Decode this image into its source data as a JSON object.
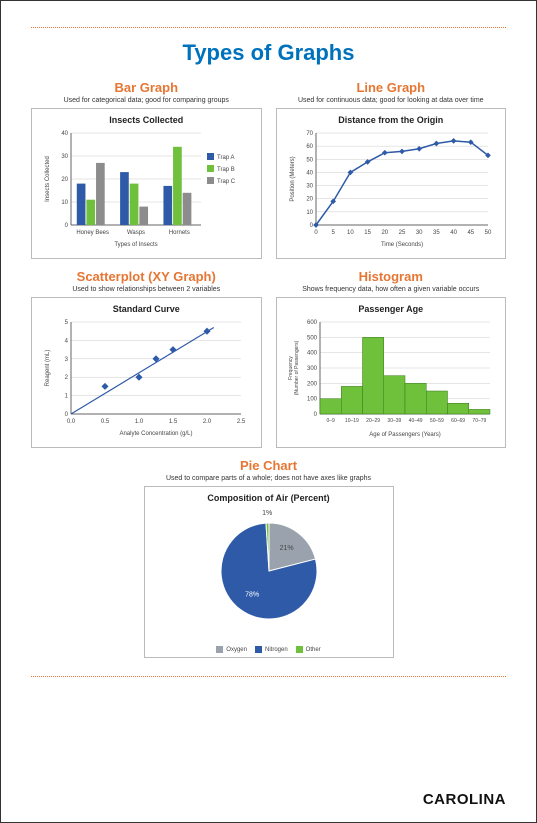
{
  "page_title": "Types of Graphs",
  "brand": "CAROLINA",
  "rule_color": "#e67633",
  "sections": {
    "bar": {
      "heading": "Bar Graph",
      "sub": "Used for categorical data; good for comparing groups",
      "chart": {
        "type": "bar",
        "title": "Insects Collected",
        "xlabel": "Types of Insects",
        "ylabel": "Insects Collected",
        "categories": [
          "Honey Bees",
          "Wasps",
          "Hornets"
        ],
        "series": [
          {
            "name": "Trap A",
            "color": "#2e5aa8",
            "values": [
              18,
              23,
              17
            ]
          },
          {
            "name": "Trap B",
            "color": "#6fc03a",
            "values": [
              11,
              18,
              34
            ]
          },
          {
            "name": "Trap C",
            "color": "#8c8c8c",
            "values": [
              27,
              8,
              14
            ]
          }
        ],
        "ylim": [
          0,
          40
        ],
        "ytick_step": 10,
        "grid_color": "#cccccc",
        "axis_color": "#666666",
        "label_fontsize": 6,
        "title_fontsize": 9
      }
    },
    "line": {
      "heading": "Line Graph",
      "sub": "Used for continuous data; good for looking at data over time",
      "chart": {
        "type": "line",
        "title": "Distance from the Origin",
        "xlabel": "Time (Seconds)",
        "ylabel": "Position (Meters)",
        "x": [
          0,
          5,
          10,
          15,
          20,
          25,
          30,
          35,
          40,
          45,
          50
        ],
        "y": [
          0,
          18,
          40,
          48,
          55,
          56,
          58,
          62,
          64,
          63,
          53
        ],
        "line_color": "#2e5aa8",
        "marker_color": "#2e5aa8",
        "ylim": [
          0,
          70
        ],
        "ytick_step": 10,
        "xlim": [
          0,
          50
        ],
        "xtick_step": 5,
        "grid_color": "#cccccc",
        "axis_color": "#666666",
        "label_fontsize": 6,
        "title_fontsize": 9
      }
    },
    "scatter": {
      "heading": "Scatterplot (XY Graph)",
      "sub": "Used to show relationships between 2 variables",
      "chart": {
        "type": "scatter",
        "title": "Standard Curve",
        "xlabel": "Analyte Concentration (g/L)",
        "ylabel": "Reagent (mL)",
        "points": [
          [
            0.5,
            1.5
          ],
          [
            1.0,
            2.0
          ],
          [
            1.25,
            3.0
          ],
          [
            1.5,
            3.5
          ],
          [
            2.0,
            4.5
          ]
        ],
        "trend": [
          [
            0,
            0
          ],
          [
            2.1,
            4.7
          ]
        ],
        "point_color": "#2e5aa8",
        "line_color": "#2e5aa8",
        "xlim": [
          0,
          2.5
        ],
        "xtick_step": 0.5,
        "ylim": [
          0,
          5
        ],
        "ytick_step": 1,
        "grid_color": "#cccccc",
        "axis_color": "#666666",
        "label_fontsize": 6,
        "title_fontsize": 9
      }
    },
    "hist": {
      "heading": "Histogram",
      "sub": "Shows frequency data, how often a given variable occurs",
      "chart": {
        "type": "histogram",
        "title": "Passenger Age",
        "xlabel": "Age of Passengers (Years)",
        "ylabel": "Frequency\n(Number of Passengers)",
        "bins": [
          "0–9",
          "10–19",
          "20–29",
          "30–39",
          "40–49",
          "50–59",
          "60–69",
          "70–79"
        ],
        "values": [
          100,
          180,
          500,
          250,
          200,
          150,
          70,
          30
        ],
        "bar_color": "#6fc03a",
        "bar_border": "#3a7a1d",
        "ylim": [
          0,
          600
        ],
        "ytick_step": 100,
        "grid_color": "#cccccc",
        "axis_color": "#666666",
        "label_fontsize": 6,
        "title_fontsize": 9
      }
    },
    "pie": {
      "heading": "Pie Chart",
      "sub": "Used to compare parts of a whole; does not have axes like graphs",
      "chart": {
        "type": "pie",
        "title": "Composition of Air (Percent)",
        "slices": [
          {
            "label": "Oxygen",
            "value": 21,
            "color": "#9aa3ad",
            "text": "21%"
          },
          {
            "label": "Nitrogen",
            "value": 78,
            "color": "#2e5aa8",
            "text": "78%"
          },
          {
            "label": "Other",
            "value": 1,
            "color": "#6fc03a",
            "text": "1%"
          }
        ],
        "title_fontsize": 9,
        "label_fontsize": 7
      }
    }
  }
}
